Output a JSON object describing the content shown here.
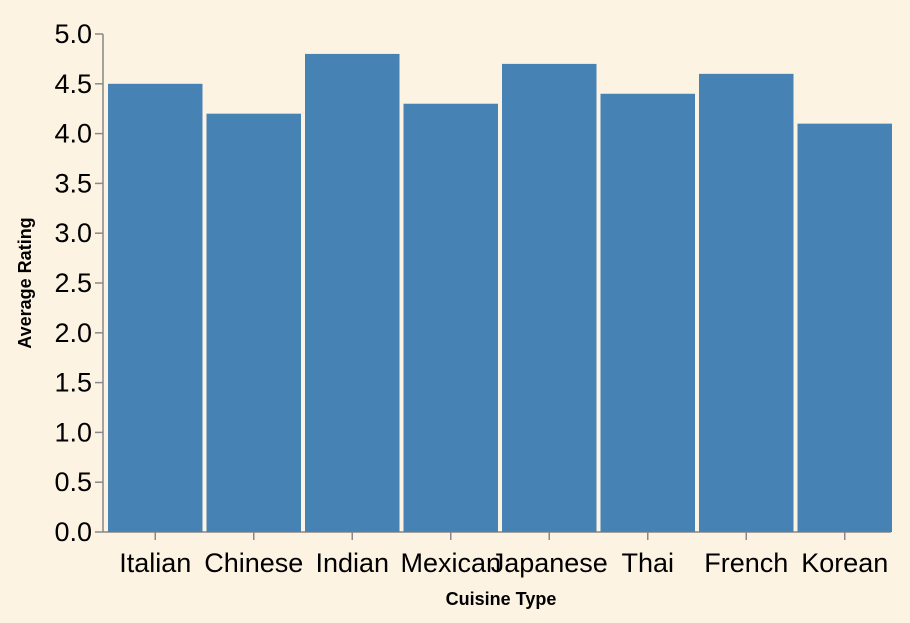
{
  "colors": {
    "background": "#fdf3e3",
    "bar": "#4682b4",
    "axis": "#888888",
    "text": "#000000"
  },
  "chart_data": {
    "type": "bar",
    "title": "",
    "xlabel": "Cuisine Type",
    "ylabel": "Average Rating",
    "categories": [
      "Italian",
      "Chinese",
      "Indian",
      "Mexican",
      "Japanese",
      "Thai",
      "French",
      "Korean"
    ],
    "values": [
      4.5,
      4.2,
      4.8,
      4.3,
      4.7,
      4.4,
      4.6,
      4.1
    ],
    "ylim": [
      0,
      5
    ],
    "yticks": [
      "0.0",
      "0.5",
      "1.0",
      "1.5",
      "2.0",
      "2.5",
      "3.0",
      "3.5",
      "4.0",
      "4.5",
      "5.0"
    ],
    "grid": false,
    "legend": "none"
  }
}
